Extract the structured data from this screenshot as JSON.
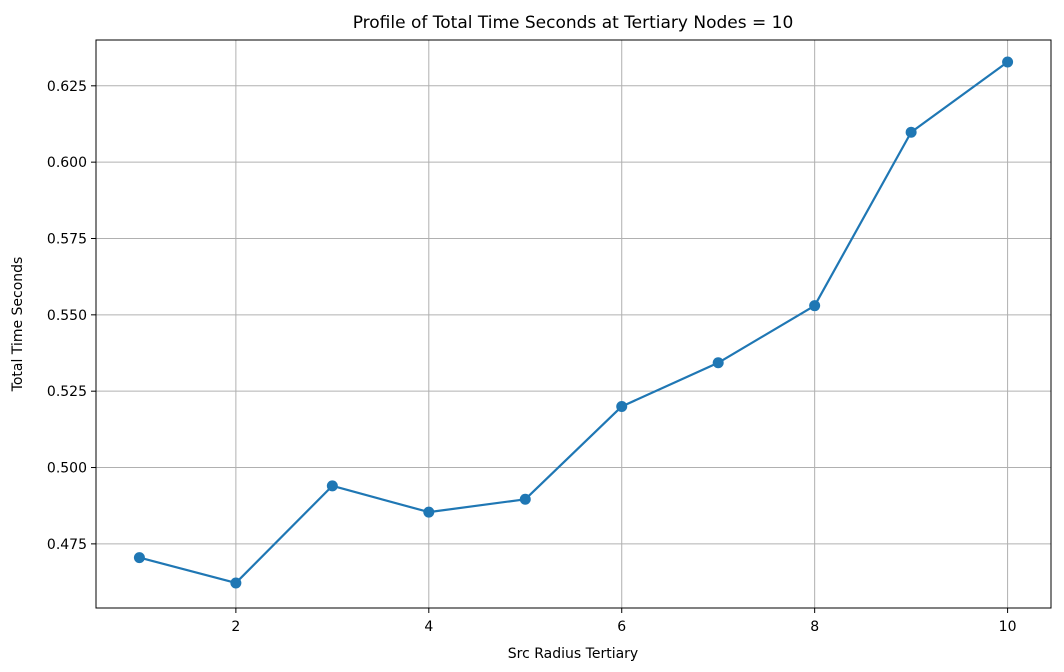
{
  "chart_data": {
    "type": "line",
    "title": "Profile of Total Time Seconds at Tertiary Nodes = 10",
    "xlabel": "Src Radius Tertiary",
    "ylabel": "Total Time Seconds",
    "xlim": [
      0.55,
      10.45
    ],
    "ylim": [
      0.454,
      0.64
    ],
    "x_ticks": [
      2,
      4,
      6,
      8,
      10
    ],
    "x_tick_labels": [
      "2",
      "4",
      "6",
      "8",
      "10"
    ],
    "y_ticks": [
      0.475,
      0.5,
      0.525,
      0.55,
      0.575,
      0.6,
      0.625
    ],
    "y_tick_labels": [
      "0.475",
      "0.500",
      "0.525",
      "0.550",
      "0.575",
      "0.600",
      "0.625"
    ],
    "grid": true,
    "series": [
      {
        "color": "#1f77b4",
        "marker": "circle",
        "x": [
          1,
          2,
          3,
          4,
          5,
          6,
          7,
          8,
          9,
          10
        ],
        "y": [
          0.4705,
          0.4622,
          0.494,
          0.4854,
          0.4896,
          0.52,
          0.5343,
          0.553,
          0.6098,
          0.6328
        ]
      }
    ]
  }
}
